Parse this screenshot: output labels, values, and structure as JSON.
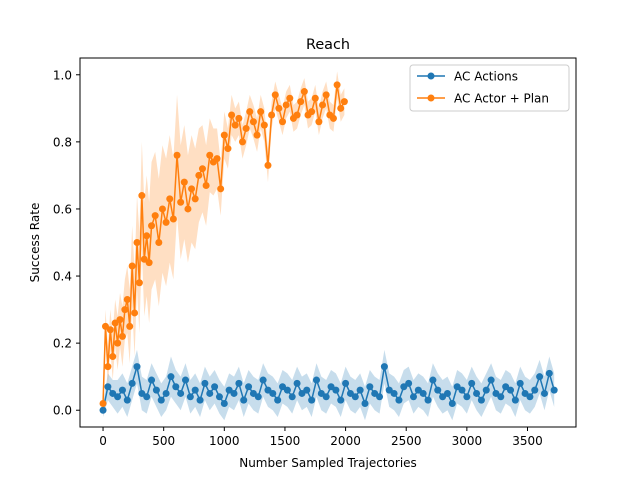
{
  "chart_data": {
    "type": "line",
    "title": "Reach",
    "xlabel": "Number Sampled Trajectories",
    "ylabel": "Success Rate",
    "xlim": [
      -190,
      3900
    ],
    "ylim": [
      -0.05,
      1.05
    ],
    "xticks": [
      "0",
      "500",
      "1000",
      "1500",
      "2000",
      "2500",
      "3000",
      "3500"
    ],
    "xtick_values": [
      0,
      500,
      1000,
      1500,
      2000,
      2500,
      3000,
      3500
    ],
    "yticks": [
      "0.0",
      "0.2",
      "0.4",
      "0.6",
      "0.8",
      "1.0"
    ],
    "ytick_values": [
      0,
      0.2,
      0.4,
      0.6,
      0.8,
      1.0
    ],
    "grid": false,
    "legend_position": "top-right",
    "series": [
      {
        "name": "AC Actions",
        "color": "#1f77b4",
        "x": [
          0,
          40,
          80,
          120,
          160,
          200,
          240,
          280,
          320,
          360,
          400,
          440,
          480,
          520,
          560,
          600,
          640,
          680,
          720,
          760,
          800,
          840,
          880,
          920,
          960,
          1000,
          1040,
          1080,
          1120,
          1160,
          1200,
          1240,
          1280,
          1320,
          1360,
          1400,
          1440,
          1480,
          1520,
          1560,
          1600,
          1640,
          1680,
          1720,
          1760,
          1800,
          1840,
          1880,
          1920,
          1960,
          2000,
          2040,
          2080,
          2120,
          2160,
          2200,
          2240,
          2280,
          2320,
          2360,
          2400,
          2440,
          2480,
          2520,
          2560,
          2600,
          2640,
          2680,
          2720,
          2760,
          2800,
          2840,
          2880,
          2920,
          2960,
          3000,
          3040,
          3080,
          3120,
          3160,
          3200,
          3240,
          3280,
          3320,
          3360,
          3400,
          3440,
          3480,
          3520,
          3560,
          3600,
          3640,
          3680,
          3720
        ],
        "y": [
          0.0,
          0.07,
          0.05,
          0.04,
          0.06,
          0.03,
          0.08,
          0.13,
          0.05,
          0.04,
          0.09,
          0.06,
          0.03,
          0.05,
          0.1,
          0.07,
          0.05,
          0.09,
          0.04,
          0.06,
          0.03,
          0.08,
          0.05,
          0.07,
          0.04,
          0.02,
          0.06,
          0.05,
          0.08,
          0.03,
          0.07,
          0.05,
          0.04,
          0.09,
          0.06,
          0.05,
          0.03,
          0.07,
          0.06,
          0.04,
          0.08,
          0.05,
          0.06,
          0.03,
          0.09,
          0.05,
          0.04,
          0.07,
          0.06,
          0.03,
          0.08,
          0.05,
          0.04,
          0.06,
          0.02,
          0.07,
          0.05,
          0.04,
          0.13,
          0.06,
          0.05,
          0.03,
          0.07,
          0.08,
          0.04,
          0.06,
          0.05,
          0.03,
          0.09,
          0.06,
          0.04,
          0.05,
          0.02,
          0.07,
          0.06,
          0.04,
          0.08,
          0.05,
          0.03,
          0.06,
          0.09,
          0.05,
          0.04,
          0.07,
          0.06,
          0.03,
          0.08,
          0.05,
          0.04,
          0.06,
          0.1,
          0.05,
          0.11,
          0.06
        ],
        "band_halfwidth": [
          0.02,
          0.04,
          0.04,
          0.05,
          0.05,
          0.05,
          0.05,
          0.05,
          0.05,
          0.05,
          0.05,
          0.05,
          0.05,
          0.05,
          0.06,
          0.05,
          0.05,
          0.05,
          0.05,
          0.05,
          0.05,
          0.05,
          0.05,
          0.05,
          0.05,
          0.05,
          0.05,
          0.05,
          0.05,
          0.05,
          0.05,
          0.05,
          0.05,
          0.05,
          0.05,
          0.05,
          0.05,
          0.05,
          0.05,
          0.05,
          0.05,
          0.05,
          0.05,
          0.05,
          0.05,
          0.05,
          0.05,
          0.05,
          0.05,
          0.05,
          0.05,
          0.05,
          0.05,
          0.05,
          0.05,
          0.05,
          0.05,
          0.05,
          0.05,
          0.05,
          0.05,
          0.05,
          0.05,
          0.05,
          0.05,
          0.05,
          0.05,
          0.05,
          0.05,
          0.05,
          0.05,
          0.05,
          0.05,
          0.05,
          0.05,
          0.05,
          0.05,
          0.05,
          0.05,
          0.05,
          0.05,
          0.05,
          0.05,
          0.05,
          0.05,
          0.05,
          0.05,
          0.05,
          0.05,
          0.05,
          0.05,
          0.05,
          0.05,
          0.05
        ]
      },
      {
        "name": "AC Actor + Plan",
        "color": "#ff7f0e",
        "x": [
          0,
          20,
          40,
          60,
          80,
          100,
          120,
          140,
          160,
          180,
          200,
          220,
          240,
          260,
          280,
          300,
          320,
          340,
          360,
          380,
          400,
          430,
          460,
          490,
          520,
          550,
          580,
          610,
          640,
          670,
          700,
          730,
          760,
          790,
          820,
          850,
          880,
          910,
          940,
          970,
          1000,
          1030,
          1060,
          1090,
          1120,
          1150,
          1180,
          1210,
          1240,
          1270,
          1300,
          1330,
          1360,
          1390,
          1420,
          1450,
          1480,
          1510,
          1540,
          1570,
          1600,
          1630,
          1660,
          1690,
          1720,
          1750,
          1780,
          1810,
          1840,
          1870,
          1900,
          1930,
          1960,
          1990
        ],
        "y": [
          0.02,
          0.25,
          0.13,
          0.24,
          0.16,
          0.26,
          0.2,
          0.27,
          0.22,
          0.3,
          0.33,
          0.25,
          0.43,
          0.29,
          0.5,
          0.38,
          0.64,
          0.45,
          0.52,
          0.44,
          0.55,
          0.58,
          0.5,
          0.6,
          0.56,
          0.63,
          0.57,
          0.76,
          0.62,
          0.68,
          0.6,
          0.66,
          0.63,
          0.7,
          0.72,
          0.67,
          0.76,
          0.74,
          0.75,
          0.66,
          0.82,
          0.78,
          0.88,
          0.85,
          0.87,
          0.8,
          0.84,
          0.89,
          0.86,
          0.82,
          0.89,
          0.85,
          0.73,
          0.88,
          0.94,
          0.9,
          0.86,
          0.91,
          0.93,
          0.87,
          0.88,
          0.92,
          0.95,
          0.88,
          0.89,
          0.93,
          0.86,
          0.91,
          0.94,
          0.88,
          0.87,
          0.97,
          0.9,
          0.92
        ],
        "band_halfwidth": [
          0.04,
          0.05,
          0.06,
          0.06,
          0.07,
          0.07,
          0.08,
          0.08,
          0.09,
          0.09,
          0.1,
          0.11,
          0.12,
          0.13,
          0.14,
          0.15,
          0.16,
          0.17,
          0.18,
          0.18,
          0.19,
          0.19,
          0.19,
          0.19,
          0.19,
          0.19,
          0.18,
          0.18,
          0.17,
          0.17,
          0.16,
          0.16,
          0.15,
          0.14,
          0.13,
          0.12,
          0.11,
          0.1,
          0.09,
          0.08,
          0.07,
          0.06,
          0.06,
          0.05,
          0.05,
          0.05,
          0.05,
          0.05,
          0.05,
          0.05,
          0.05,
          0.05,
          0.05,
          0.04,
          0.04,
          0.04,
          0.04,
          0.04,
          0.04,
          0.04,
          0.04,
          0.04,
          0.04,
          0.04,
          0.04,
          0.04,
          0.04,
          0.04,
          0.04,
          0.04,
          0.04,
          0.04,
          0.04,
          0.04
        ]
      }
    ]
  }
}
